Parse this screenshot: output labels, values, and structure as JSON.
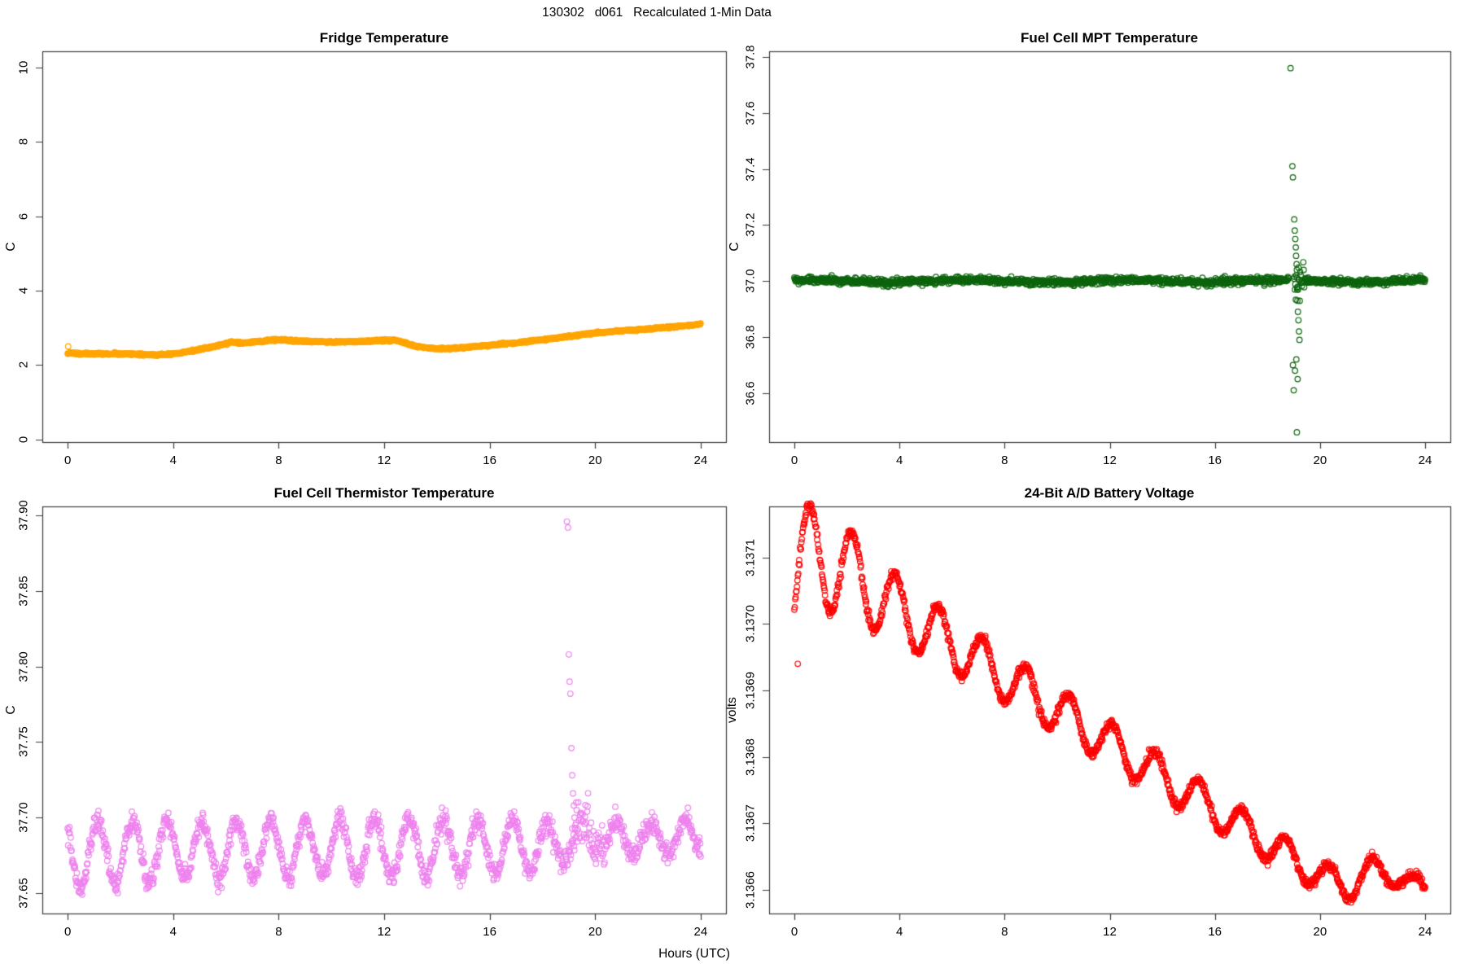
{
  "page": {
    "main_title": "130302   d061   Recalculated 1-Min Data",
    "x_axis_label": "Hours (UTC)"
  },
  "chart_data": [
    {
      "id": "fridge-temperature",
      "type": "scatter",
      "title": "Fridge Temperature",
      "ylabel": "C",
      "point_color": "#FFA500",
      "marker": "open-circle",
      "xlim": [
        -0.96,
        24.96
      ],
      "ylim": [
        -0.07,
        10.43
      ],
      "xticks": [
        0,
        4,
        8,
        12,
        16,
        20,
        24
      ],
      "xtick_labels": [
        "0",
        "4",
        "8",
        "12",
        "16",
        "20",
        "24"
      ],
      "yticks": [
        0,
        2,
        4,
        6,
        8,
        10
      ],
      "ytick_labels": [
        "0",
        "2",
        "4",
        "6",
        "8",
        "10"
      ],
      "series": [
        {
          "name": "fridge_temp_c",
          "kind": "trend",
          "n": 1440,
          "noise_sd": 0.012,
          "trend": [
            [
              0,
              2.32
            ],
            [
              1,
              2.3
            ],
            [
              2,
              2.3
            ],
            [
              3,
              2.28
            ],
            [
              3.7,
              2.28
            ],
            [
              4.3,
              2.33
            ],
            [
              5,
              2.42
            ],
            [
              5.7,
              2.52
            ],
            [
              6.2,
              2.62
            ],
            [
              6.6,
              2.59
            ],
            [
              7.1,
              2.62
            ],
            [
              7.6,
              2.66
            ],
            [
              8.1,
              2.68
            ],
            [
              8.6,
              2.65
            ],
            [
              9.2,
              2.63
            ],
            [
              10,
              2.62
            ],
            [
              11,
              2.63
            ],
            [
              11.8,
              2.66
            ],
            [
              12.4,
              2.67
            ],
            [
              12.8,
              2.6
            ],
            [
              13.2,
              2.51
            ],
            [
              13.7,
              2.46
            ],
            [
              14.3,
              2.44
            ],
            [
              15,
              2.47
            ],
            [
              16,
              2.53
            ],
            [
              17,
              2.6
            ],
            [
              18,
              2.68
            ],
            [
              19,
              2.77
            ],
            [
              19.5,
              2.82
            ],
            [
              20,
              2.86
            ],
            [
              21,
              2.92
            ],
            [
              22,
              2.97
            ],
            [
              23,
              3.03
            ],
            [
              23.5,
              3.06
            ],
            [
              24,
              3.1
            ]
          ]
        }
      ],
      "outliers": [
        [
          0.02,
          2.5
        ]
      ]
    },
    {
      "id": "fuel-cell-mpt-temperature",
      "type": "scatter",
      "title": "Fuel Cell MPT Temperature",
      "ylabel": "C",
      "point_color": "#0C640C",
      "marker": "open-circle",
      "xlim": [
        -0.96,
        24.96
      ],
      "ylim": [
        36.425,
        37.82
      ],
      "xticks": [
        0,
        4,
        8,
        12,
        16,
        20,
        24
      ],
      "xtick_labels": [
        "0",
        "4",
        "8",
        "12",
        "16",
        "20",
        "24"
      ],
      "yticks": [
        36.6,
        36.8,
        37.0,
        37.2,
        37.4,
        37.6,
        37.8
      ],
      "ytick_labels": [
        "36.6",
        "36.8",
        "37.0",
        "37.2",
        "37.4",
        "37.6",
        "37.8"
      ],
      "series": [
        {
          "name": "mpt_temp_c",
          "kind": "flat",
          "n": 1440,
          "base": 37.0,
          "wave_amp": 0.004,
          "wave_period": 6,
          "noise_sd": 0.006,
          "gap": [
            18.82,
            19.0
          ]
        }
      ],
      "extra_noise": {
        "range": [
          19.0,
          19.4
        ],
        "sd": 0.03
      },
      "outliers": [
        [
          18.88,
          37.76
        ],
        [
          18.95,
          37.41
        ],
        [
          18.97,
          37.37
        ],
        [
          19.02,
          37.22
        ],
        [
          19.04,
          37.18
        ],
        [
          19.06,
          37.15
        ],
        [
          19.08,
          37.12
        ],
        [
          19.09,
          37.09
        ],
        [
          19.11,
          37.06
        ],
        [
          19.12,
          37.04
        ],
        [
          19.13,
          36.97
        ],
        [
          19.14,
          36.93
        ],
        [
          19.16,
          36.89
        ],
        [
          19.18,
          36.86
        ],
        [
          19.2,
          36.82
        ],
        [
          19.22,
          36.79
        ],
        [
          19.1,
          36.72
        ],
        [
          18.97,
          36.7
        ],
        [
          19.05,
          36.68
        ],
        [
          19.15,
          36.65
        ],
        [
          19.0,
          36.61
        ],
        [
          19.12,
          36.46
        ]
      ]
    },
    {
      "id": "fuel-cell-thermistor-temperature",
      "type": "scatter",
      "title": "Fuel Cell Thermistor Temperature",
      "ylabel": "C",
      "point_color": "#EE82EE",
      "marker": "open-circle",
      "xlim": [
        -0.96,
        24.96
      ],
      "ylim": [
        37.6365,
        37.906
      ],
      "xticks": [
        0,
        4,
        8,
        12,
        16,
        20,
        24
      ],
      "xtick_labels": [
        "0",
        "4",
        "8",
        "12",
        "16",
        "20",
        "24"
      ],
      "yticks": [
        37.65,
        37.7,
        37.75,
        37.8,
        37.85,
        37.9
      ],
      "ytick_labels": [
        "37.65",
        "37.70",
        "37.75",
        "37.80",
        "37.85",
        "37.90"
      ],
      "series": [
        {
          "name": "thermistor_temp_c",
          "kind": "osc",
          "n": 1440,
          "noise_sd": 0.0035,
          "period": 1.31,
          "peak_t0": 1.15,
          "center": [
            [
              0,
              37.676
            ],
            [
              3,
              37.678
            ],
            [
              12,
              37.68
            ],
            [
              18.5,
              37.681
            ],
            [
              19.6,
              37.69
            ],
            [
              20.5,
              37.686
            ],
            [
              24,
              37.687
            ]
          ],
          "amp": [
            [
              0,
              0.022
            ],
            [
              2.5,
              0.021
            ],
            [
              4,
              0.019
            ],
            [
              15,
              0.019
            ],
            [
              18.5,
              0.016
            ],
            [
              19.5,
              0.008
            ],
            [
              20.5,
              0.012
            ],
            [
              24,
              0.011
            ]
          ]
        }
      ],
      "extra_noise": {
        "range": [
          19.2,
          20.4
        ],
        "sd": 0.006
      },
      "outliers": [
        [
          18.93,
          37.896
        ],
        [
          18.97,
          37.892
        ],
        [
          19.0,
          37.808
        ],
        [
          19.03,
          37.79
        ],
        [
          19.06,
          37.782
        ],
        [
          19.1,
          37.746
        ],
        [
          19.13,
          37.728
        ],
        [
          19.16,
          37.716
        ],
        [
          19.19,
          37.708
        ],
        [
          19.22,
          37.7
        ],
        [
          19.25,
          37.695
        ],
        [
          19.28,
          37.71
        ],
        [
          19.3,
          37.705
        ],
        [
          0.55,
          37.649
        ],
        [
          1.9,
          37.65
        ]
      ]
    },
    {
      "id": "battery-voltage",
      "type": "scatter",
      "title": "24-Bit A/D Battery Voltage",
      "ylabel": "volts",
      "point_color": "#FF0000",
      "marker": "open-circle",
      "xlim": [
        -0.96,
        24.96
      ],
      "ylim": [
        3.136564,
        3.137177
      ],
      "xticks": [
        0,
        4,
        8,
        12,
        16,
        20,
        24
      ],
      "xtick_labels": [
        "0",
        "4",
        "8",
        "12",
        "16",
        "20",
        "24"
      ],
      "yticks": [
        3.1366,
        3.1367,
        3.1368,
        3.1369,
        3.137,
        3.1371
      ],
      "ytick_labels": [
        "3.1366",
        "3.1367",
        "3.1368",
        "3.1369",
        "3.1370",
        "3.1371"
      ],
      "series": [
        {
          "name": "battery_volts",
          "kind": "osc",
          "n": 1440,
          "noise_sd": 3.5e-06,
          "period": 1.65,
          "peak_t0": 0.55,
          "center": [
            [
              0,
              3.13707
            ],
            [
              1,
              3.137105
            ],
            [
              2,
              3.13708
            ],
            [
              3,
              3.13705
            ],
            [
              4,
              3.13702
            ],
            [
              5,
              3.136995
            ],
            [
              6,
              3.13697
            ],
            [
              7,
              3.136945
            ],
            [
              8,
              3.13692
            ],
            [
              9,
              3.136895
            ],
            [
              10,
              3.13687
            ],
            [
              11,
              3.136845
            ],
            [
              12,
              3.13682
            ],
            [
              13,
              3.136795
            ],
            [
              14,
              3.13677
            ],
            [
              15,
              3.136745
            ],
            [
              16,
              3.13672
            ],
            [
              17,
              3.136695
            ],
            [
              18,
              3.13667
            ],
            [
              19,
              3.136645
            ],
            [
              20,
              3.13662
            ],
            [
              21,
              3.136605
            ],
            [
              22,
              3.13663
            ],
            [
              23,
              3.13662
            ],
            [
              24,
              3.1366
            ]
          ],
          "amp": [
            [
              0,
              9e-05
            ],
            [
              0.55,
              9e-05
            ],
            [
              2.2,
              6.5e-05
            ],
            [
              3.85,
              5e-05
            ],
            [
              5.5,
              4.2e-05
            ],
            [
              8,
              3.7e-05
            ],
            [
              12,
              3.2e-05
            ],
            [
              16,
              2.8e-05
            ],
            [
              20,
              2.4e-05
            ],
            [
              22,
              2e-05
            ],
            [
              24,
              1.2e-05
            ]
          ]
        }
      ],
      "outliers": [
        [
          0.13,
          3.13694
        ]
      ]
    }
  ]
}
